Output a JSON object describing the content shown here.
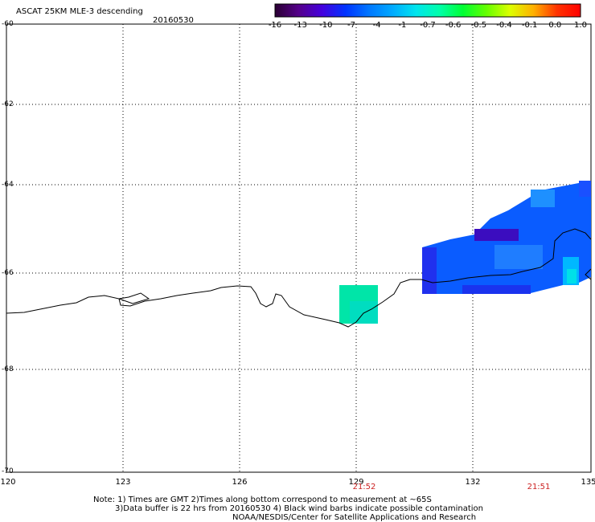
{
  "header": {
    "title": "ASCAT 25KM MLE-3 descending",
    "date": "20160530"
  },
  "colorbar": {
    "labels": [
      "-16",
      "-13",
      "-10",
      "-7",
      "-4",
      "-1",
      "-0.7",
      "-0.6",
      "-0.5",
      "-0.4",
      "-0.1",
      "0.0",
      "1.0"
    ],
    "colors": [
      "#2a0033",
      "#55008a",
      "#4400dd",
      "#0033ff",
      "#0077ff",
      "#00aaff",
      "#00e5ee",
      "#00ffaa",
      "#00ff33",
      "#66ff00",
      "#ddff00",
      "#ffb000",
      "#ff3300",
      "#ff0000"
    ]
  },
  "axes": {
    "lat_labels": [
      "-60",
      "-62",
      "-64",
      "-66",
      "-68",
      "-70"
    ],
    "lon_labels": [
      "120",
      "123",
      "126",
      "129",
      "132",
      "135"
    ]
  },
  "times": [
    "21:52",
    "21:51"
  ],
  "notes": {
    "line1": "Note: 1) Times are GMT 2)Times along bottom correspond to measurement at ~65S",
    "line2": "3)Data buffer is 22 hrs from 20160530 4) Black wind barbs indicate possible contamination",
    "line3": "NOAA/NESDIS/Center for Satellite Applications and Research"
  }
}
